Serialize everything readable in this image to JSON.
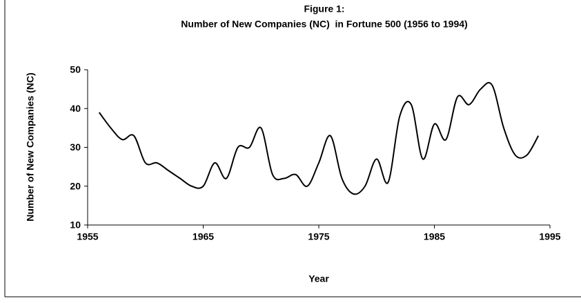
{
  "chart_data": {
    "type": "line",
    "title": "Figure 1:",
    "subtitle": "Number of New Companies (NC)  in Fortune 500 (1956 to 1994)",
    "x_label": "Year",
    "y_label": "Number of New Companies (NC)",
    "x": [
      1956,
      1957,
      1958,
      1959,
      1960,
      1961,
      1962,
      1963,
      1964,
      1965,
      1966,
      1967,
      1968,
      1969,
      1970,
      1971,
      1972,
      1973,
      1974,
      1975,
      1976,
      1977,
      1978,
      1979,
      1980,
      1981,
      1982,
      1983,
      1984,
      1985,
      1986,
      1987,
      1988,
      1989,
      1990,
      1991,
      1992,
      1993,
      1994
    ],
    "series": [
      {
        "name": "NC",
        "color": "#000000",
        "values": [
          39,
          35,
          32,
          33,
          26,
          26,
          24,
          22,
          20,
          20,
          26,
          22,
          30,
          30,
          35,
          23,
          22,
          23,
          20,
          26,
          33,
          22,
          18,
          20,
          27,
          21,
          38,
          41,
          27,
          36,
          32,
          43,
          41,
          45,
          46,
          35,
          28,
          28,
          33
        ]
      }
    ],
    "xlim": [
      1955,
      1995
    ],
    "xticks": [
      1955,
      1965,
      1975,
      1985,
      1995
    ],
    "ylim": [
      10,
      50
    ],
    "yticks": [
      10,
      20,
      30,
      40,
      50
    ],
    "grid": false,
    "smooth": true
  }
}
